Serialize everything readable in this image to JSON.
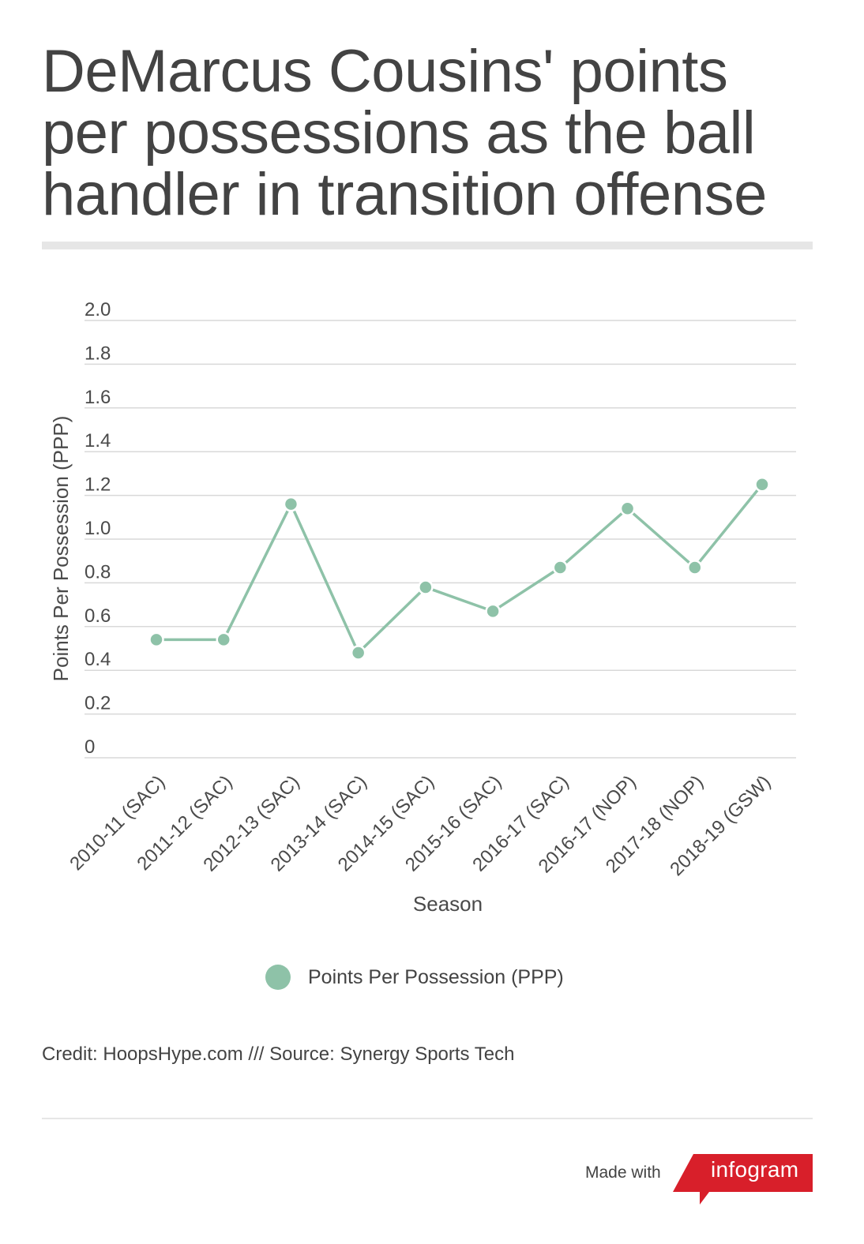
{
  "title": "DeMarcus Cousins' points per possessions as the ball handler in transition offense",
  "chart_data": {
    "type": "line",
    "categories": [
      "2010-11 (SAC)",
      "2011-12 (SAC)",
      "2012-13 (SAC)",
      "2013-14 (SAC)",
      "2014-15 (SAC)",
      "2015-16 (SAC)",
      "2016-17 (SAC)",
      "2016-17 (NOP)",
      "2017-18 (NOP)",
      "2018-19 (GSW)"
    ],
    "series": [
      {
        "name": "Points Per Possession (PPP)",
        "values": [
          0.54,
          0.54,
          1.16,
          0.48,
          0.78,
          0.67,
          0.87,
          1.14,
          0.87,
          1.25
        ]
      }
    ],
    "xlabel": "Season",
    "ylabel": "Points Per Possession (PPP)",
    "ylim": [
      0,
      2.0
    ],
    "yticks": [
      "0",
      "0.2",
      "0.4",
      "0.6",
      "0.8",
      "1.0",
      "1.2",
      "1.4",
      "1.6",
      "1.8",
      "2.0"
    ],
    "grid": true,
    "legend_position": "bottom",
    "line_color": "#8ec2a8"
  },
  "legend": {
    "label": "Points Per Possession (PPP)"
  },
  "credit": "Credit: HoopsHype.com /// Source: Synergy Sports Tech",
  "footer": {
    "made_with": "Made with",
    "brand": "infogram",
    "brand_color": "#d81f2a"
  }
}
